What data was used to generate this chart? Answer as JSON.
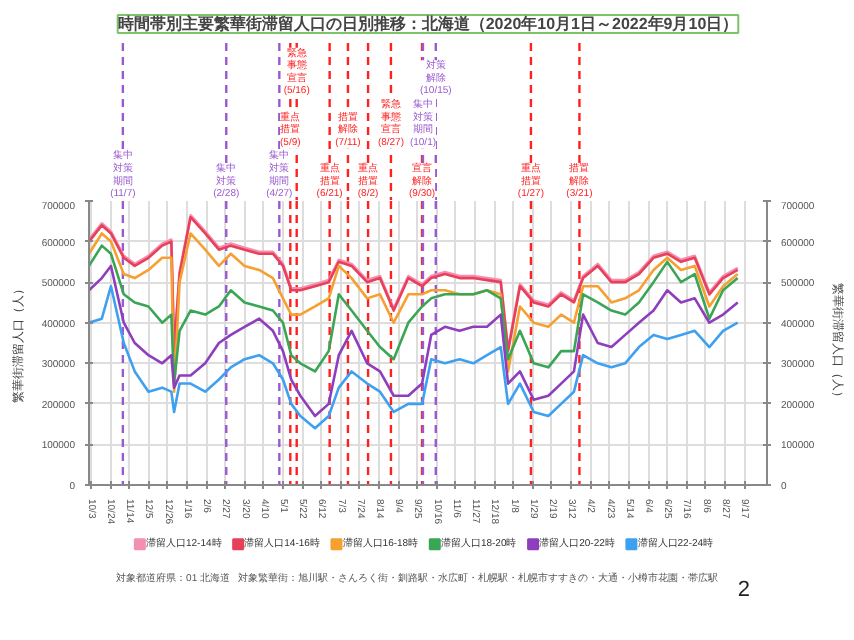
{
  "chart_data": {
    "type": "line",
    "title": "時間帯別主要繁華街滞留人口の日別推移：北海道（2020年10月1日～2022年9月10日）",
    "ylabel": "繁華街滞留人口（人）",
    "y2label": "繁華街滞留人口（人）",
    "x": [
      "2020-10-01",
      "2020-10-15",
      "2020-10-25",
      "2020-11-08",
      "2020-11-20",
      "2020-12-05",
      "2020-12-20",
      "2020-12-30",
      "2021-01-02",
      "2021-01-08",
      "2021-01-20",
      "2021-02-05",
      "2021-02-20",
      "2021-03-05",
      "2021-03-20",
      "2021-04-05",
      "2021-04-20",
      "2021-05-01",
      "2021-05-10",
      "2021-05-20",
      "2021-06-05",
      "2021-06-20",
      "2021-07-01",
      "2021-07-15",
      "2021-08-01",
      "2021-08-15",
      "2021-08-30",
      "2021-09-15",
      "2021-09-30",
      "2021-10-10",
      "2021-10-25",
      "2021-11-10",
      "2021-11-25",
      "2021-12-10",
      "2021-12-25",
      "2022-01-02",
      "2022-01-15",
      "2022-01-30",
      "2022-02-15",
      "2022-03-01",
      "2022-03-15",
      "2022-03-25",
      "2022-04-10",
      "2022-04-25",
      "2022-05-10",
      "2022-05-25",
      "2022-06-10",
      "2022-06-25",
      "2022-07-10",
      "2022-07-25",
      "2022-08-10",
      "2022-08-25",
      "2022-09-10"
    ],
    "series": [
      {
        "name": "滞留人口12-14時",
        "color": "#f48fb1",
        "values": [
          605000,
          645000,
          625000,
          565000,
          545000,
          565000,
          595000,
          605000,
          335000,
          525000,
          665000,
          625000,
          585000,
          595000,
          585000,
          575000,
          575000,
          545000,
          485000,
          485000,
          495000,
          505000,
          555000,
          545000,
          505000,
          515000,
          435000,
          515000,
          495000,
          515000,
          525000,
          515000,
          515000,
          510000,
          505000,
          335000,
          495000,
          455000,
          445000,
          475000,
          455000,
          515000,
          545000,
          505000,
          505000,
          525000,
          565000,
          575000,
          555000,
          565000,
          475000,
          515000,
          535000
        ]
      },
      {
        "name": "滞留人口14-16時",
        "color": "#e8405a",
        "values": [
          600000,
          640000,
          620000,
          560000,
          540000,
          560000,
          590000,
          600000,
          330000,
          520000,
          660000,
          620000,
          580000,
          590000,
          580000,
          570000,
          570000,
          540000,
          480000,
          480000,
          490000,
          500000,
          550000,
          540000,
          500000,
          510000,
          430000,
          510000,
          490000,
          510000,
          520000,
          510000,
          510000,
          505000,
          500000,
          330000,
          490000,
          450000,
          440000,
          470000,
          450000,
          510000,
          540000,
          500000,
          500000,
          520000,
          560000,
          570000,
          550000,
          560000,
          470000,
          510000,
          530000
        ]
      },
      {
        "name": "滞留人口16-18時",
        "color": "#f5a030",
        "values": [
          570000,
          620000,
          600000,
          520000,
          510000,
          530000,
          560000,
          560000,
          230000,
          500000,
          620000,
          580000,
          540000,
          570000,
          540000,
          530000,
          510000,
          460000,
          420000,
          420000,
          440000,
          460000,
          540000,
          510000,
          460000,
          470000,
          400000,
          470000,
          470000,
          480000,
          480000,
          470000,
          470000,
          480000,
          470000,
          280000,
          440000,
          400000,
          390000,
          420000,
          400000,
          490000,
          490000,
          450000,
          460000,
          480000,
          530000,
          560000,
          530000,
          540000,
          440000,
          490000,
          520000
        ]
      },
      {
        "name": "滞留人口18-20時",
        "color": "#3aa655",
        "values": [
          540000,
          590000,
          570000,
          470000,
          450000,
          440000,
          400000,
          420000,
          250000,
          380000,
          430000,
          420000,
          440000,
          480000,
          450000,
          440000,
          430000,
          400000,
          320000,
          300000,
          280000,
          330000,
          470000,
          430000,
          380000,
          340000,
          310000,
          400000,
          440000,
          460000,
          470000,
          470000,
          470000,
          480000,
          460000,
          310000,
          380000,
          300000,
          290000,
          330000,
          330000,
          470000,
          450000,
          430000,
          420000,
          450000,
          500000,
          550000,
          500000,
          520000,
          410000,
          480000,
          510000
        ]
      },
      {
        "name": "滞留人口20-22時",
        "color": "#8e3ebc",
        "values": [
          480000,
          510000,
          540000,
          400000,
          350000,
          320000,
          300000,
          320000,
          240000,
          270000,
          270000,
          300000,
          350000,
          370000,
          390000,
          410000,
          380000,
          330000,
          260000,
          220000,
          170000,
          200000,
          320000,
          380000,
          300000,
          280000,
          220000,
          220000,
          250000,
          370000,
          390000,
          380000,
          390000,
          390000,
          420000,
          250000,
          280000,
          210000,
          220000,
          250000,
          280000,
          420000,
          350000,
          340000,
          370000,
          400000,
          430000,
          480000,
          450000,
          460000,
          400000,
          420000,
          450000
        ]
      },
      {
        "name": "滞留人口22-24時",
        "color": "#3ea0f0",
        "values": [
          400000,
          410000,
          490000,
          350000,
          280000,
          230000,
          240000,
          230000,
          180000,
          250000,
          250000,
          230000,
          260000,
          290000,
          310000,
          320000,
          300000,
          260000,
          200000,
          170000,
          140000,
          170000,
          240000,
          280000,
          250000,
          230000,
          180000,
          200000,
          200000,
          310000,
          300000,
          310000,
          300000,
          320000,
          340000,
          200000,
          250000,
          180000,
          170000,
          200000,
          230000,
          320000,
          300000,
          290000,
          300000,
          340000,
          370000,
          360000,
          370000,
          380000,
          340000,
          380000,
          400000
        ]
      }
    ],
    "xlim": [
      "2020-10-01",
      "2022-10-12"
    ],
    "xticks": [
      {
        "value": "2020-10-03",
        "label": "10/3"
      },
      {
        "value": "2020-10-24",
        "label": "10/24"
      },
      {
        "value": "2020-11-14",
        "label": "11/14"
      },
      {
        "value": "2020-12-05",
        "label": "12/5"
      },
      {
        "value": "2020-12-26",
        "label": "12/26"
      },
      {
        "value": "2021-01-16",
        "label": "1/16"
      },
      {
        "value": "2021-02-06",
        "label": "2/6"
      },
      {
        "value": "2021-02-27",
        "label": "2/27"
      },
      {
        "value": "2021-03-20",
        "label": "3/20"
      },
      {
        "value": "2021-04-10",
        "label": "4/10"
      },
      {
        "value": "2021-05-01",
        "label": "5/1"
      },
      {
        "value": "2021-05-22",
        "label": "5/22"
      },
      {
        "value": "2021-06-12",
        "label": "6/12"
      },
      {
        "value": "2021-07-03",
        "label": "7/3"
      },
      {
        "value": "2021-07-24",
        "label": "7/24"
      },
      {
        "value": "2021-08-14",
        "label": "8/14"
      },
      {
        "value": "2021-09-04",
        "label": "9/4"
      },
      {
        "value": "2021-09-25",
        "label": "9/25"
      },
      {
        "value": "2021-10-16",
        "label": "10/16"
      },
      {
        "value": "2021-11-06",
        "label": "11/6"
      },
      {
        "value": "2021-11-27",
        "label": "11/27"
      },
      {
        "value": "2021-12-18",
        "label": "12/18"
      },
      {
        "value": "2022-01-08",
        "label": "1/8"
      },
      {
        "value": "2022-01-29",
        "label": "1/29"
      },
      {
        "value": "2022-02-19",
        "label": "2/19"
      },
      {
        "value": "2022-03-12",
        "label": "3/12"
      },
      {
        "value": "2022-04-02",
        "label": "4/2"
      },
      {
        "value": "2022-04-23",
        "label": "4/23"
      },
      {
        "value": "2022-05-14",
        "label": "5/14"
      },
      {
        "value": "2022-06-04",
        "label": "6/4"
      },
      {
        "value": "2022-06-25",
        "label": "6/25"
      },
      {
        "value": "2022-07-16",
        "label": "7/16"
      },
      {
        "value": "2022-08-06",
        "label": "8/6"
      },
      {
        "value": "2022-08-27",
        "label": "8/27"
      },
      {
        "value": "2022-09-17",
        "label": "9/17"
      }
    ],
    "ylim": [
      0,
      700000
    ],
    "yticks": [
      0,
      100000,
      200000,
      300000,
      400000,
      500000,
      600000,
      700000
    ],
    "y2lim": [
      0,
      700000
    ],
    "y2ticks": [
      0,
      100000,
      200000,
      300000,
      400000,
      500000,
      600000,
      700000
    ],
    "grid": true,
    "legend": "bottom",
    "line_style": "solid",
    "ref_lines": [
      {
        "axis": "x",
        "value": "2020-11-07",
        "label": "集中対策期間(11/7)",
        "color": "#9b59d0",
        "line_style": "dashed"
      },
      {
        "axis": "x",
        "value": "2021-02-28",
        "label": "集中対策(2/28)",
        "color": "#9b59d0",
        "line_style": "dashed"
      },
      {
        "axis": "x",
        "value": "2021-04-27",
        "label": "集中対策期間(4/27)",
        "color": "#9b59d0",
        "line_style": "dashed"
      },
      {
        "axis": "x",
        "value": "2021-05-09",
        "label": "重点措置(5/9)",
        "color": "#ff2020",
        "line_style": "dashed"
      },
      {
        "axis": "x",
        "value": "2021-05-16",
        "label": "緊急事態宣言(5/16)",
        "color": "#ff2020",
        "line_style": "dashed"
      },
      {
        "axis": "x",
        "value": "2021-06-21",
        "label": "重点措置(6/21)",
        "color": "#ff2020",
        "line_style": "dashed"
      },
      {
        "axis": "x",
        "value": "2021-07-11",
        "label": "措置解除(7/11)",
        "color": "#ff2020",
        "line_style": "dashed"
      },
      {
        "axis": "x",
        "value": "2021-08-02",
        "label": "重点措置(8/2)",
        "color": "#ff2020",
        "line_style": "dashed"
      },
      {
        "axis": "x",
        "value": "2021-08-27",
        "label": "緊急事態宣言(8/27)",
        "color": "#ff2020",
        "line_style": "dashed"
      },
      {
        "axis": "x",
        "value": "2021-09-30",
        "label": "宣言解除(9/30)",
        "color": "#ff2020",
        "line_style": "dashed"
      },
      {
        "axis": "x",
        "value": "2021-10-01",
        "label": "集中対策期間(10/1)",
        "color": "#9b59d0",
        "line_style": "dashed"
      },
      {
        "axis": "x",
        "value": "2021-10-15",
        "label": "対策解除(10/15)",
        "color": "#9b59d0",
        "line_style": "dashed"
      },
      {
        "axis": "x",
        "value": "2022-01-27",
        "label": "重点措置(1/27)",
        "color": "#ff2020",
        "line_style": "dashed"
      },
      {
        "axis": "x",
        "value": "2022-03-21",
        "label": "措置解除(3/21)",
        "color": "#ff2020",
        "line_style": "dashed"
      }
    ],
    "annotations": [
      "対象都道府県：01 北海道",
      "対象繁華街：旭川駅・さんろく街・釧路駅・水広町・札幌駅・札幌市すすきの・大通・小樽市花園・帯広駅",
      "2"
    ]
  }
}
